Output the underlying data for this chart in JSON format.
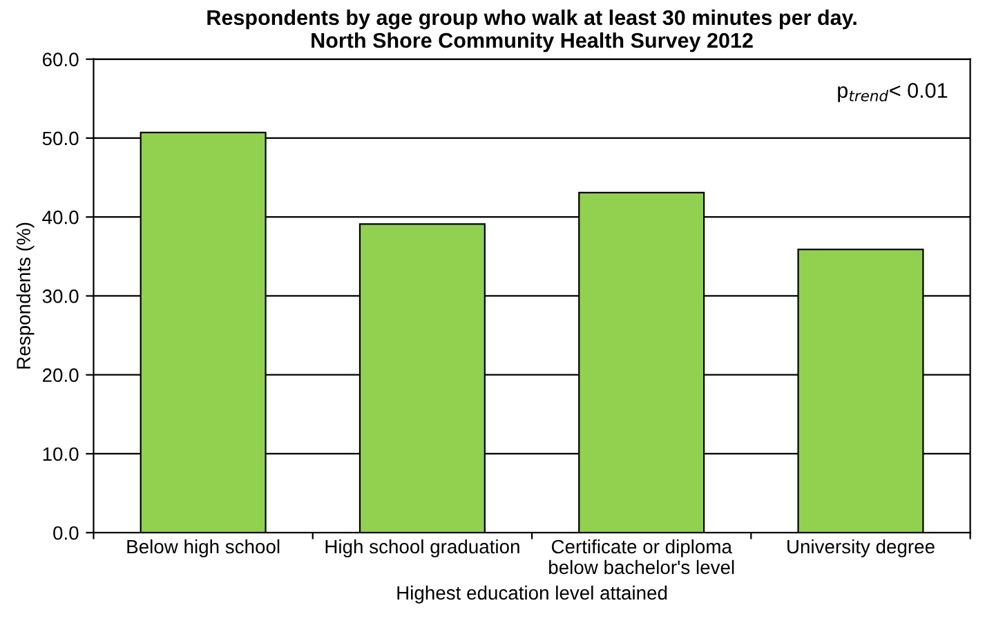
{
  "chart_data": {
    "type": "bar",
    "title": "Respondents by age group who walk at least 30 minutes per day.\nNorth Shore Community Health Survey 2012",
    "xlabel": "Highest education level attained",
    "ylabel": "Respondents (%)",
    "categories": [
      "Below high school",
      "High school graduation",
      "Certificate or diploma\nbelow bachelor's level",
      "University degree"
    ],
    "values": [
      50.7,
      39.1,
      43.1,
      35.9
    ],
    "color": "#92d050",
    "ylim": [
      0,
      60
    ],
    "yticks": [
      {
        "value": 0,
        "label": "0.0"
      },
      {
        "value": 10,
        "label": "10.0"
      },
      {
        "value": 20,
        "label": "20.0"
      },
      {
        "value": 30,
        "label": "30.0"
      },
      {
        "value": 40,
        "label": "40.0"
      },
      {
        "value": 50,
        "label": "50.0"
      },
      {
        "value": 60,
        "label": "60.0"
      }
    ],
    "grid": "y",
    "annotations": [
      "p$_{trend}$< 0.01"
    ]
  }
}
